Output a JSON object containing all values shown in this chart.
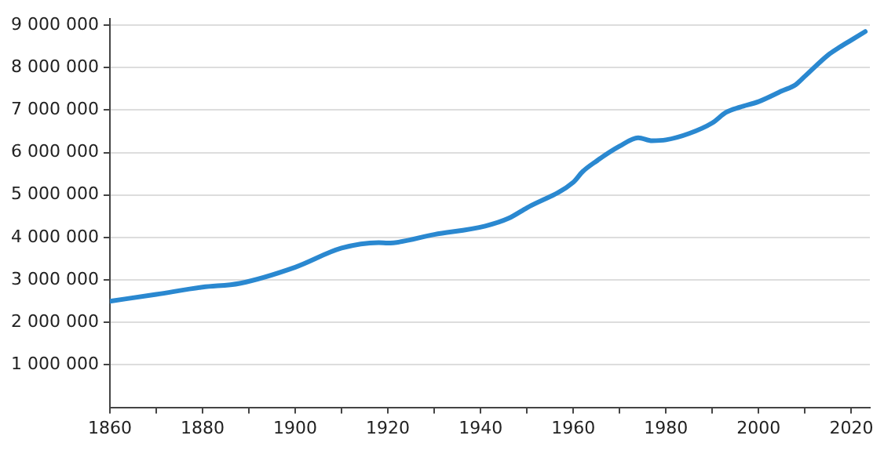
{
  "chart_data": {
    "type": "line",
    "x": [
      1860,
      1870,
      1880,
      1888,
      1900,
      1910,
      1918,
      1920,
      1930,
      1941,
      1946,
      1950,
      1960,
      1962,
      1965,
      1970,
      1974,
      1977,
      1980,
      1985,
      1990,
      1993,
      1996,
      2000,
      2005,
      2008,
      2010,
      2015,
      2017,
      2020,
      2023
    ],
    "series": [
      {
        "color": "#2a88d0",
        "values": [
          2500000,
          2660000,
          2830000,
          2920000,
          3300000,
          3750000,
          3880000,
          3870000,
          4070000,
          4270000,
          4450000,
          4700000,
          5300000,
          5550000,
          5800000,
          6150000,
          6350000,
          6280000,
          6300000,
          6450000,
          6700000,
          6950000,
          7070000,
          7200000,
          7450000,
          7600000,
          7800000,
          8300000,
          8450000,
          8650000,
          8850000
        ]
      }
    ],
    "xlim": [
      1860,
      2024
    ],
    "xticks": [
      1860,
      {
        "value": 1870,
        "label": null
      },
      1880,
      {
        "value": 1890,
        "label": null
      },
      1900,
      {
        "value": 1910,
        "label": null
      },
      1920,
      {
        "value": 1930,
        "label": null
      },
      1940,
      {
        "value": 1950,
        "label": null
      },
      1960,
      {
        "value": 1970,
        "label": null
      },
      1980,
      {
        "value": 1990,
        "label": null
      },
      2000,
      {
        "value": 2010,
        "label": null
      },
      2020
    ],
    "ylim": [
      0,
      9150000
    ],
    "yticks": [
      {
        "value": 1000000,
        "label": "1 000 000"
      },
      {
        "value": 2000000,
        "label": "2 000 000"
      },
      {
        "value": 3000000,
        "label": "3 000 000"
      },
      {
        "value": 4000000,
        "label": "4 000 000"
      },
      {
        "value": 5000000,
        "label": "5 000 000"
      },
      {
        "value": 6000000,
        "label": "6 000 000"
      },
      {
        "value": 7000000,
        "label": "7 000 000"
      },
      {
        "value": 8000000,
        "label": "8 000 000"
      },
      {
        "value": 9000000,
        "label": "9 000 000"
      }
    ],
    "grid": "y",
    "legend": false,
    "marker": "none",
    "line_style": "solid"
  }
}
